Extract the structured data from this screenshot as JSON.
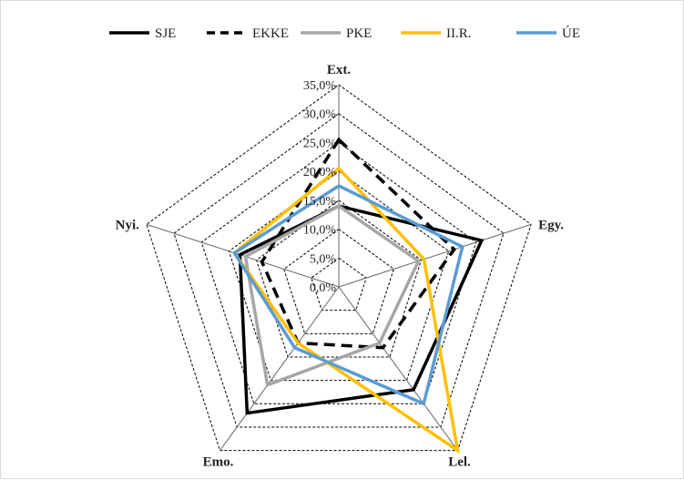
{
  "chart_data": {
    "type": "radar",
    "title": "",
    "axes": [
      "Ext.",
      "Egy.",
      "Lel.",
      "Emo.",
      "Nyi."
    ],
    "rlim": [
      0,
      35
    ],
    "ticks": [
      "0,0%",
      "5,0%",
      "10,0%",
      "15,0%",
      "20,0%",
      "25,0%",
      "30,0%",
      "35,0%"
    ],
    "tick_values": [
      0,
      5,
      10,
      15,
      20,
      25,
      30,
      35
    ],
    "grid": true,
    "legend_position": "top",
    "series": [
      {
        "name": "SJE",
        "values": [
          14.0,
          26.0,
          22.0,
          27.0,
          18.0
        ],
        "color": "#000000",
        "dash": "solid"
      },
      {
        "name": "EKKE",
        "values": [
          25.5,
          21.0,
          13.0,
          12.0,
          14.0
        ],
        "color": "#000000",
        "dash": "dashed"
      },
      {
        "name": "PKE",
        "values": [
          14.0,
          14.5,
          12.0,
          21.0,
          17.0
        ],
        "color": "#a6a6a6",
        "dash": "solid"
      },
      {
        "name": "II.R.",
        "values": [
          20.5,
          15.5,
          35.0,
          12.0,
          19.0
        ],
        "color": "#ffc000",
        "dash": "solid"
      },
      {
        "name": "ÚE",
        "values": [
          17.5,
          22.5,
          25.0,
          13.0,
          19.0
        ],
        "color": "#5b9bd5",
        "dash": "solid"
      }
    ]
  }
}
